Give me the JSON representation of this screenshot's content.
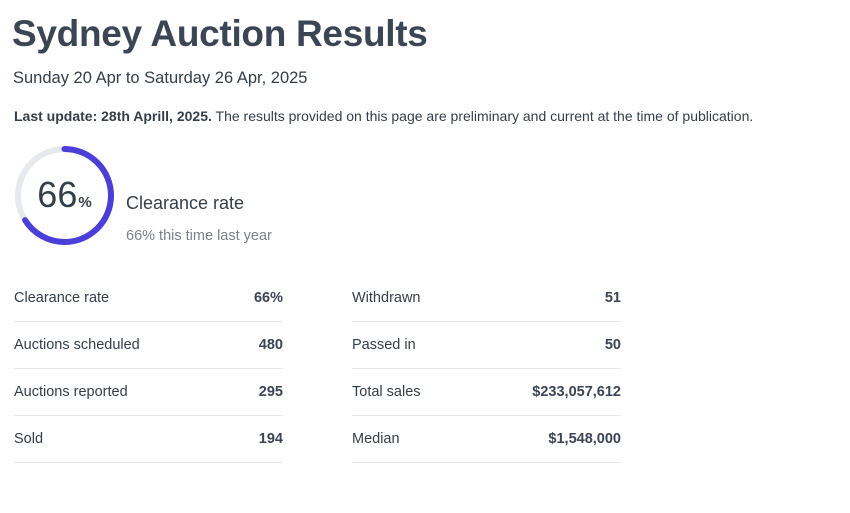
{
  "header": {
    "title": "Sydney Auction Results",
    "date_range": "Sunday 20 Apr to Saturday 26 Apr, 2025",
    "last_update_label": "Last update: 28th Aprill, 2025.",
    "last_update_note": " The results provided on this page are preliminary and current at the time of publication."
  },
  "gauge": {
    "value": "66",
    "unit": "%",
    "fraction": 0.66,
    "label": "Clearance rate",
    "sublabel": "66% this time last year",
    "colors": {
      "track": "#e8e9ec",
      "fill": "#4b3fd8"
    }
  },
  "stats": {
    "left": [
      {
        "label": "Clearance rate",
        "value": "66%"
      },
      {
        "label": "Auctions scheduled",
        "value": "480"
      },
      {
        "label": "Auctions reported",
        "value": "295"
      },
      {
        "label": "Sold",
        "value": "194"
      }
    ],
    "right": [
      {
        "label": "Withdrawn",
        "value": "51"
      },
      {
        "label": "Passed in",
        "value": "50"
      },
      {
        "label": "Total sales",
        "value": "$233,057,612"
      },
      {
        "label": "Median",
        "value": "$1,548,000"
      }
    ]
  }
}
